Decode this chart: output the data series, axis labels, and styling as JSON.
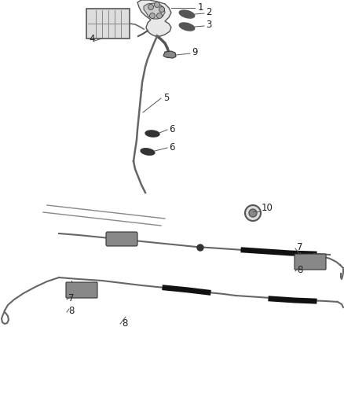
{
  "bg_color": "#ffffff",
  "fig_width": 4.38,
  "fig_height": 5.33,
  "dpi": 100,
  "cable_color": "#666666",
  "dark_color": "#222222",
  "label_color": "#222222",
  "label_fontsize": 8.5
}
